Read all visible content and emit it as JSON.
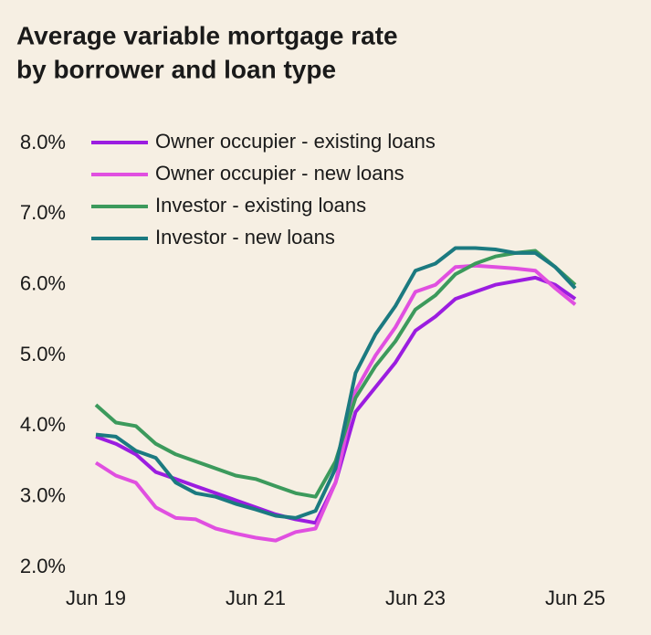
{
  "chart_data": {
    "type": "line",
    "title": [
      "Average variable mortgage rate",
      "by borrower and loan type"
    ],
    "categories": [
      "Jun 19",
      null,
      null,
      null,
      null,
      null,
      null,
      null,
      "Jun 21",
      null,
      null,
      null,
      null,
      null,
      null,
      null,
      "Jun 23",
      null,
      null,
      null,
      null,
      null,
      null,
      null,
      "Jun 25"
    ],
    "series": [
      {
        "name": "Owner occupier - existing loans",
        "color": "#9b1de0",
        "values": [
          3.85,
          3.75,
          3.6,
          3.35,
          3.25,
          3.15,
          3.05,
          2.95,
          2.85,
          2.75,
          2.68,
          2.63,
          3.2,
          4.2,
          4.55,
          4.9,
          5.35,
          5.55,
          5.8,
          5.9,
          6.0,
          6.05,
          6.1,
          6.0,
          5.8
        ]
      },
      {
        "name": "Owner occupier - new loans",
        "color": "#e04fe0",
        "values": [
          3.48,
          3.3,
          3.2,
          2.85,
          2.7,
          2.68,
          2.55,
          2.48,
          2.42,
          2.38,
          2.5,
          2.55,
          3.2,
          4.5,
          5.0,
          5.4,
          5.9,
          6.0,
          6.25,
          6.27,
          6.25,
          6.23,
          6.2,
          5.95,
          5.72
        ]
      },
      {
        "name": "Investor - existing loans",
        "color": "#3c9a5c",
        "values": [
          4.3,
          4.05,
          4.0,
          3.75,
          3.6,
          3.5,
          3.4,
          3.3,
          3.25,
          3.15,
          3.05,
          3.0,
          3.5,
          4.4,
          4.85,
          5.2,
          5.65,
          5.85,
          6.15,
          6.3,
          6.4,
          6.45,
          6.48,
          6.25,
          6.0
        ]
      },
      {
        "name": "Investor - new loans",
        "color": "#1b7a80",
        "values": [
          3.88,
          3.85,
          3.65,
          3.55,
          3.2,
          3.05,
          3.0,
          2.9,
          2.82,
          2.73,
          2.7,
          2.8,
          3.4,
          4.75,
          5.3,
          5.7,
          6.2,
          6.3,
          6.52,
          6.52,
          6.5,
          6.45,
          6.45,
          6.25,
          5.95
        ]
      }
    ],
    "ylim": [
      2,
      8
    ],
    "yticks": [
      {
        "value": 2,
        "label": "2.0%"
      },
      {
        "value": 3,
        "label": "3.0%"
      },
      {
        "value": 4,
        "label": "4.0%"
      },
      {
        "value": 5,
        "label": "5.0%"
      },
      {
        "value": 6,
        "label": "6.0%"
      },
      {
        "value": 7,
        "label": "7.0%"
      },
      {
        "value": 8,
        "label": "8.0%"
      }
    ],
    "grid": false,
    "legend": "upper left"
  }
}
